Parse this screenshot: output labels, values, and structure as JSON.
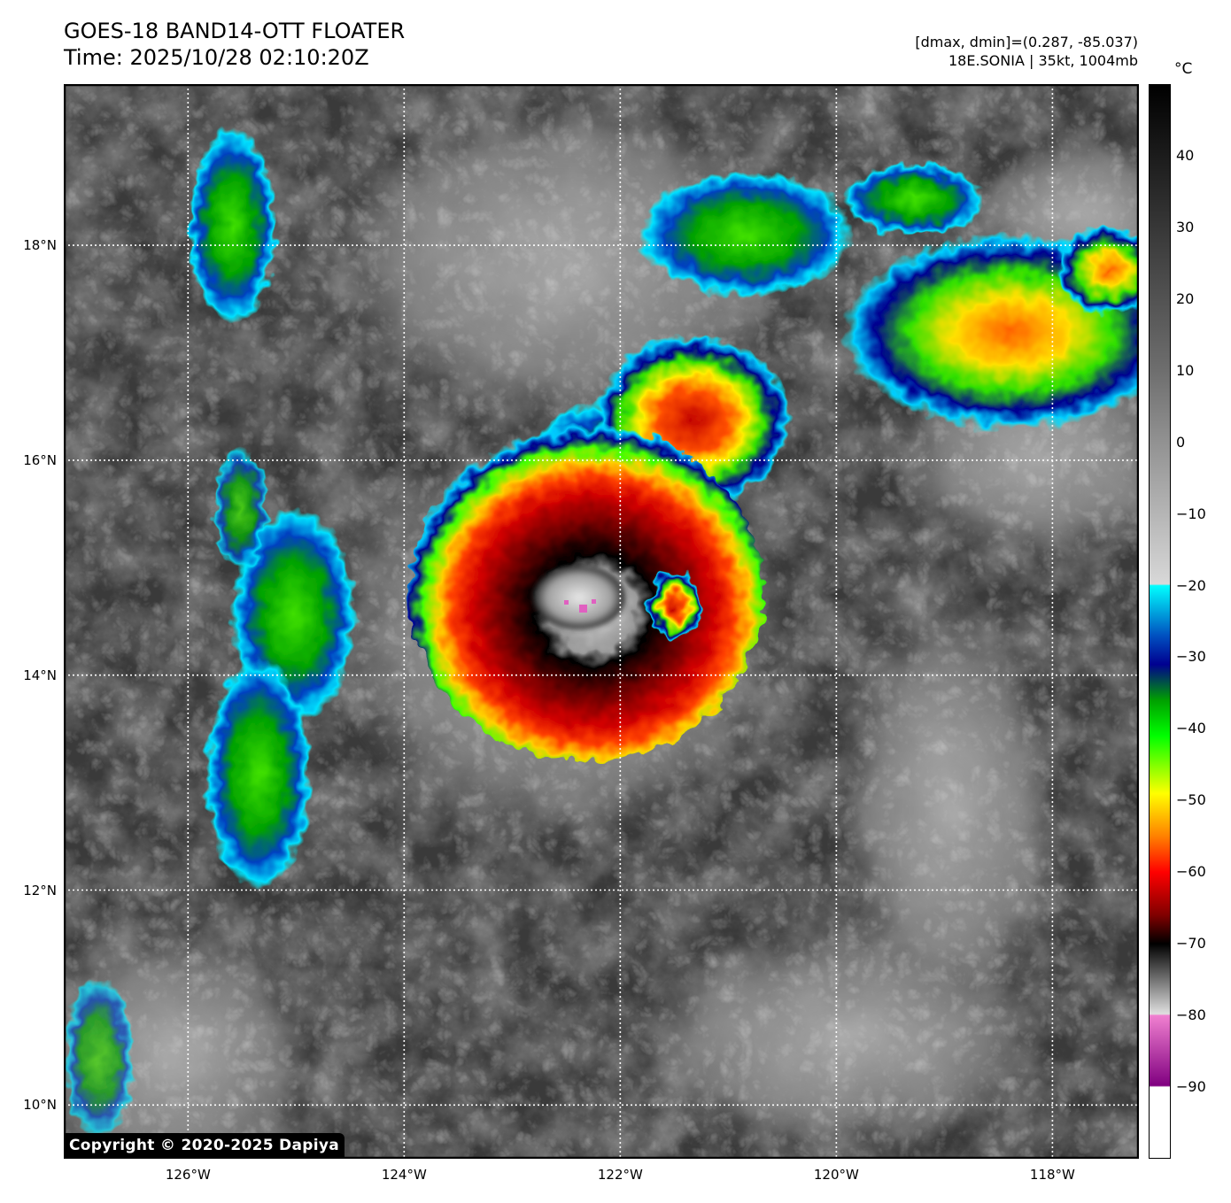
{
  "header": {
    "title_line1": "GOES-18 BAND14-OTT FLOATER",
    "title_line2": "Time: 2025/10/28 02:10:20Z",
    "info_line1": "[dmax, dmin]=(0.287, -85.037)",
    "info_line2": "18E.SONIA | 35kt, 1004mb"
  },
  "map": {
    "lon_range": [
      -127.15,
      -117.2
    ],
    "lat_range": [
      9.5,
      19.5
    ],
    "lat_gridlines": [
      {
        "value": 18,
        "label": "18°N"
      },
      {
        "value": 16,
        "label": "16°N"
      },
      {
        "value": 14,
        "label": "14°N"
      },
      {
        "value": 12,
        "label": "12°N"
      },
      {
        "value": 10,
        "label": "10°N"
      }
    ],
    "lon_gridlines": [
      {
        "value": -126,
        "label": "126°W"
      },
      {
        "value": -124,
        "label": "124°W"
      },
      {
        "value": -122,
        "label": "122°W"
      },
      {
        "value": -120,
        "label": "120°W"
      },
      {
        "value": -118,
        "label": "118°W"
      }
    ],
    "gridline_style": "dotted white"
  },
  "colorbar": {
    "unit": "°C",
    "range": [
      -100,
      50
    ],
    "ticks": [
      {
        "value": 40,
        "label": "40"
      },
      {
        "value": 30,
        "label": "30"
      },
      {
        "value": 20,
        "label": "20"
      },
      {
        "value": 10,
        "label": "10"
      },
      {
        "value": 0,
        "label": "0"
      },
      {
        "value": -10,
        "label": "−10"
      },
      {
        "value": -20,
        "label": "−20"
      },
      {
        "value": -30,
        "label": "−30"
      },
      {
        "value": -40,
        "label": "−40"
      },
      {
        "value": -50,
        "label": "−50"
      },
      {
        "value": -60,
        "label": "−60"
      },
      {
        "value": -70,
        "label": "−70"
      },
      {
        "value": -80,
        "label": "−80"
      },
      {
        "value": -90,
        "label": "−90"
      }
    ],
    "stops": [
      {
        "t": 50,
        "c": "#000000"
      },
      {
        "t": 10,
        "c": "#6e6e6e"
      },
      {
        "t": -19.8,
        "c": "#d8d8d8"
      },
      {
        "t": -20,
        "c": "#00ffff"
      },
      {
        "t": -27,
        "c": "#0050c0"
      },
      {
        "t": -31,
        "c": "#000090"
      },
      {
        "t": -36,
        "c": "#00a000"
      },
      {
        "t": -41,
        "c": "#00ff00"
      },
      {
        "t": -49,
        "c": "#ffff00"
      },
      {
        "t": -55,
        "c": "#ff8000"
      },
      {
        "t": -60,
        "c": "#ff0000"
      },
      {
        "t": -66,
        "c": "#800000"
      },
      {
        "t": -70,
        "c": "#000000"
      },
      {
        "t": -79.8,
        "c": "#e0e0e0"
      },
      {
        "t": -80,
        "c": "#f080d0"
      },
      {
        "t": -89.8,
        "c": "#800080"
      },
      {
        "t": -90,
        "c": "#ffffff"
      },
      {
        "t": -100,
        "c": "#ffffff"
      }
    ]
  },
  "colors": {
    "background_cloudfree": "#3a3a3a",
    "low_cloud": "#8a8a8a",
    "cold_top_core": "#800000",
    "eye_warm": "#d0d0d0",
    "overshooting_top": "#e060c0"
  },
  "storm": {
    "name": "18E.SONIA",
    "center_lon": -122.6,
    "center_lat": 14.6
  },
  "copyright": "Copyright © 2020-2025 Dapiya"
}
